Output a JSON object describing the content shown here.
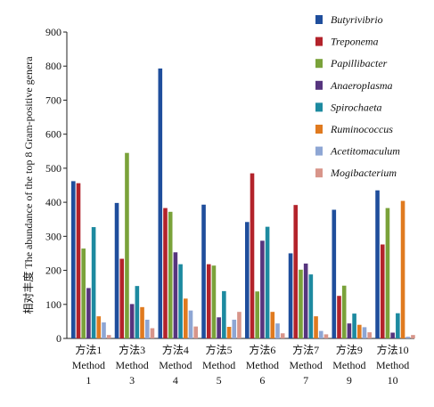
{
  "chart_data": {
    "type": "bar",
    "ylabel": "相对丰度 The abundance of the top 8 Gram-positive genera",
    "ylim": [
      0,
      900
    ],
    "yticks": [
      0,
      100,
      200,
      300,
      400,
      500,
      600,
      700,
      800,
      900
    ],
    "categories": [
      {
        "cn": "方法1",
        "en": "Method",
        "num": "1"
      },
      {
        "cn": "方法3",
        "en": "Method",
        "num": "3"
      },
      {
        "cn": "方法4",
        "en": "Method",
        "num": "4"
      },
      {
        "cn": "方法5",
        "en": "Method",
        "num": "5"
      },
      {
        "cn": "方法6",
        "en": "Method",
        "num": "6"
      },
      {
        "cn": "方法7",
        "en": "Method",
        "num": "7"
      },
      {
        "cn": "方法9",
        "en": "Method",
        "num": "9"
      },
      {
        "cn": "方法10",
        "en": "Method",
        "num": "10"
      }
    ],
    "series": [
      {
        "name": "Butyrivibrio",
        "color": "#1f4e9c",
        "values": [
          462,
          398,
          793,
          393,
          342,
          250,
          378,
          435
        ]
      },
      {
        "name": "Treponema",
        "color": "#b3232b",
        "values": [
          456,
          234,
          383,
          218,
          485,
          392,
          125,
          276
        ]
      },
      {
        "name": "Papillibacter",
        "color": "#7aa23a",
        "values": [
          264,
          545,
          372,
          214,
          138,
          202,
          155,
          383
        ]
      },
      {
        "name": "Anaeroplasma",
        "color": "#56357e",
        "values": [
          148,
          101,
          253,
          62,
          287,
          220,
          44,
          17
        ]
      },
      {
        "name": "Spirochaeta",
        "color": "#1d8aa0",
        "values": [
          327,
          154,
          218,
          139,
          328,
          188,
          73,
          74
        ]
      },
      {
        "name": "Ruminococcus",
        "color": "#e07a1f",
        "values": [
          65,
          92,
          117,
          34,
          78,
          65,
          40,
          404
        ]
      },
      {
        "name": "Acetitomaculum",
        "color": "#8ea6d4",
        "values": [
          47,
          55,
          82,
          55,
          44,
          22,
          33,
          5
        ]
      },
      {
        "name": "Mogibacterium",
        "color": "#d8958a",
        "values": [
          10,
          30,
          35,
          78,
          15,
          12,
          18,
          10
        ]
      }
    ],
    "legend_position": "top-right",
    "grid": false
  }
}
